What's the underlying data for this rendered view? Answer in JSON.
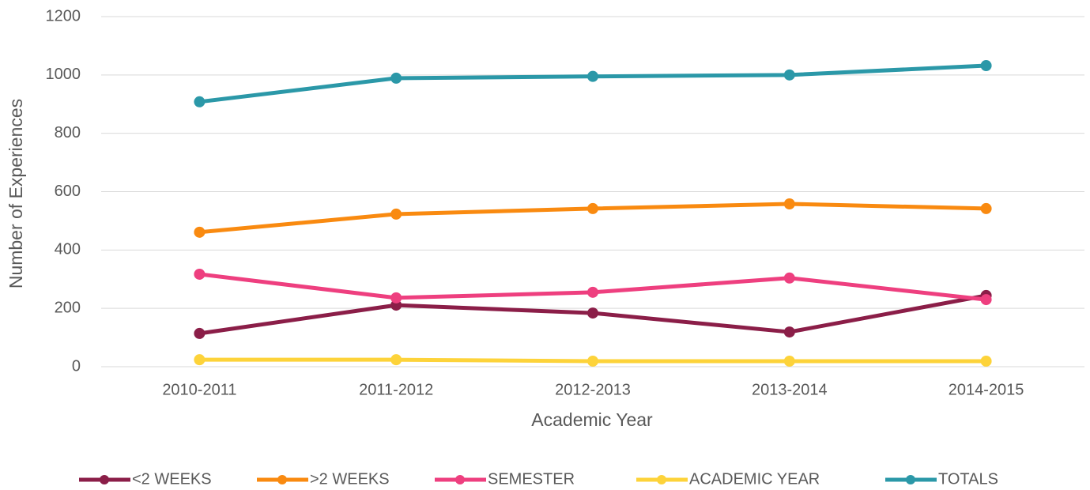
{
  "chart_data": {
    "type": "line",
    "x_label": "Academic Year",
    "y_label": "Number of Experiences",
    "categories": [
      "2010-2011",
      "2011-2012",
      "2012-2013",
      "2013-2014",
      "2014-2015"
    ],
    "series": [
      {
        "name": "<2 WEEKS",
        "color": "#8b1e48",
        "values": [
          114,
          211,
          184,
          119,
          244
        ]
      },
      {
        "name": ">2 WEEKS",
        "color": "#f98a10",
        "values": [
          461,
          523,
          542,
          558,
          542
        ]
      },
      {
        "name": "SEMESTER",
        "color": "#ee3f7f",
        "values": [
          317,
          236,
          255,
          304,
          230
        ]
      },
      {
        "name": "ACADEMIC YEAR",
        "color": "#fdd33a",
        "values": [
          24,
          24,
          19,
          19,
          19
        ]
      },
      {
        "name": "TOTALS",
        "color": "#2b98a8",
        "values": [
          908,
          989,
          995,
          1000,
          1032
        ]
      }
    ],
    "ylim": [
      0,
      1200
    ],
    "yticks": [
      0,
      200,
      400,
      600,
      800,
      1000,
      1200
    ],
    "grid": true,
    "legend": "bottom"
  }
}
